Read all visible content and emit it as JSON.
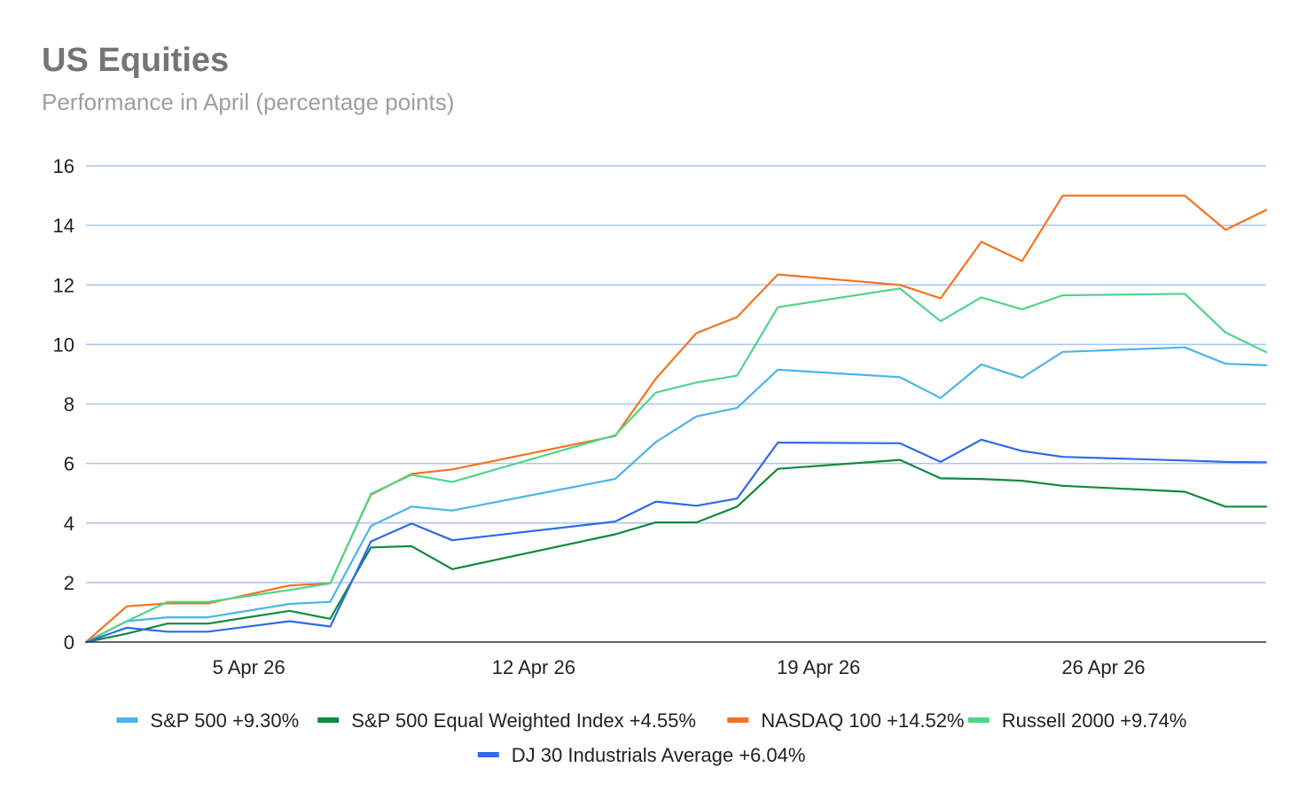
{
  "chart_data": {
    "type": "line",
    "title": "US Equities",
    "subtitle": "Performance in April (percentage points)",
    "xlabel": "",
    "ylabel": "",
    "ylim": [
      0,
      16
    ],
    "yticks": [
      0,
      2,
      4,
      6,
      8,
      10,
      12,
      14,
      16
    ],
    "xlim": [
      1,
      30
    ],
    "xticks": [
      {
        "day": 5,
        "label": "5 Apr 26"
      },
      {
        "day": 12,
        "label": "12 Apr 26"
      },
      {
        "day": 19,
        "label": "19 Apr 26"
      },
      {
        "day": 26,
        "label": "26 Apr 26"
      }
    ],
    "x": [
      1,
      2,
      3,
      4,
      6,
      7,
      8,
      9,
      10,
      11,
      14,
      15,
      16,
      17,
      18,
      21,
      22,
      23,
      24,
      25,
      28,
      29,
      30
    ],
    "grid": true,
    "legend_position": "bottom",
    "series": [
      {
        "name": "S&P 500 +9.30%",
        "color": "#4cb4e7",
        "values": [
          0,
          0.7,
          0.83,
          0.83,
          1.28,
          1.35,
          3.9,
          4.55,
          4.42,
          null,
          5.48,
          6.72,
          7.58,
          7.87,
          9.15,
          8.9,
          8.2,
          9.33,
          8.88,
          9.75,
          9.9,
          9.35,
          9.3
        ]
      },
      {
        "name": "S&P 500 Equal Weighted Index +4.55%",
        "color": "#0f8a3c",
        "values": [
          0,
          0.28,
          0.62,
          0.62,
          1.05,
          0.78,
          3.18,
          3.22,
          2.45,
          null,
          3.62,
          4.02,
          4.02,
          4.55,
          5.82,
          6.12,
          5.5,
          5.48,
          5.42,
          5.25,
          5.05,
          4.55,
          4.55
        ]
      },
      {
        "name": "NASDAQ 100 +14.52%",
        "color": "#f4731f",
        "values": [
          0,
          1.2,
          1.3,
          1.3,
          1.9,
          1.97,
          4.95,
          5.65,
          5.8,
          null,
          6.92,
          8.85,
          10.38,
          10.92,
          12.35,
          12.0,
          11.55,
          13.45,
          12.8,
          15.0,
          15.0,
          13.85,
          14.52
        ]
      },
      {
        "name": "Russell 2000 +9.74%",
        "color": "#4dd68a",
        "values": [
          0,
          0.7,
          1.35,
          1.35,
          1.75,
          1.97,
          4.98,
          5.62,
          5.38,
          null,
          6.95,
          8.38,
          8.72,
          8.95,
          11.25,
          11.88,
          10.78,
          11.58,
          11.18,
          11.65,
          11.7,
          10.4,
          9.74
        ]
      },
      {
        "name": "DJ 30 Industrials Average +6.04%",
        "color": "#2f6ae9",
        "values": [
          0,
          0.48,
          0.35,
          0.35,
          0.7,
          0.52,
          3.38,
          3.98,
          3.42,
          null,
          4.05,
          4.72,
          4.58,
          4.82,
          6.7,
          6.68,
          6.05,
          6.8,
          6.42,
          6.22,
          6.1,
          6.05,
          6.04
        ]
      }
    ]
  }
}
